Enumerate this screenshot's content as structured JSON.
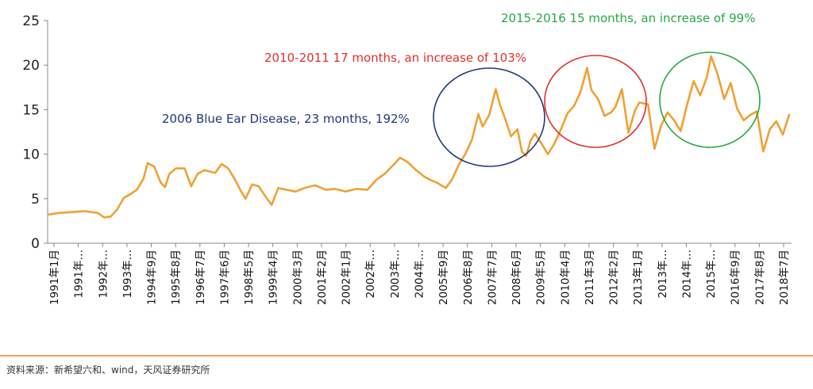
{
  "chart_data": {
    "type": "line",
    "title": "",
    "xlabel": "",
    "ylabel": "",
    "ylim": [
      0,
      25
    ],
    "yticks": [
      "0",
      "5",
      "10",
      "15",
      "20",
      "25"
    ],
    "grid": false,
    "legend": "none",
    "line_color": "#f0a033",
    "x_ticks": [
      "1991年1月",
      "1991年…",
      "1992年…",
      "1993年…",
      "1994年9月",
      "1995年8月",
      "1996年7月",
      "1997年6月",
      "1998年5月",
      "1999年4月",
      "2000年3月",
      "2001年2月",
      "2002年1月",
      "2002年…",
      "2003年…",
      "2004年…",
      "2005年9月",
      "2006年8月",
      "2007年7月",
      "2008年6月",
      "2009年5月",
      "2010年4月",
      "2011年3月",
      "2012年2月",
      "2013年1月",
      "2013年…",
      "2014年…",
      "2015年…",
      "2016年9月",
      "2017年8月",
      "2018年7月"
    ],
    "series": [
      {
        "points": [
          [
            "1991-01",
            3.2
          ],
          [
            "1991-06",
            3.4
          ],
          [
            "1991-12",
            3.5
          ],
          [
            "1992-06",
            3.6
          ],
          [
            "1992-12",
            3.4
          ],
          [
            "1993-03",
            2.9
          ],
          [
            "1993-06",
            3.0
          ],
          [
            "1993-09",
            3.8
          ],
          [
            "1993-12",
            5.1
          ],
          [
            "1994-03",
            5.5
          ],
          [
            "1994-06",
            6.0
          ],
          [
            "1994-09",
            7.2
          ],
          [
            "1994-11",
            9.0
          ],
          [
            "1995-02",
            8.6
          ],
          [
            "1995-05",
            6.8
          ],
          [
            "1995-07",
            6.3
          ],
          [
            "1995-09",
            7.8
          ],
          [
            "1995-12",
            8.4
          ],
          [
            "1996-04",
            8.4
          ],
          [
            "1996-07",
            6.4
          ],
          [
            "1996-10",
            7.8
          ],
          [
            "1997-01",
            8.2
          ],
          [
            "1997-06",
            7.9
          ],
          [
            "1997-09",
            8.9
          ],
          [
            "1997-12",
            8.4
          ],
          [
            "1998-03",
            7.2
          ],
          [
            "1998-06",
            5.8
          ],
          [
            "1998-08",
            5.0
          ],
          [
            "1998-11",
            6.6
          ],
          [
            "1999-02",
            6.4
          ],
          [
            "1999-05",
            5.3
          ],
          [
            "1999-08",
            4.3
          ],
          [
            "1999-11",
            6.2
          ],
          [
            "2000-03",
            6.0
          ],
          [
            "2000-07",
            5.8
          ],
          [
            "2000-11",
            6.2
          ],
          [
            "2001-04",
            6.5
          ],
          [
            "2001-09",
            6.0
          ],
          [
            "2002-01",
            6.1
          ],
          [
            "2002-06",
            5.8
          ],
          [
            "2002-11",
            6.1
          ],
          [
            "2003-04",
            6.0
          ],
          [
            "2003-08",
            7.1
          ],
          [
            "2003-12",
            7.8
          ],
          [
            "2004-04",
            8.8
          ],
          [
            "2004-07",
            9.6
          ],
          [
            "2004-10",
            9.2
          ],
          [
            "2005-02",
            8.3
          ],
          [
            "2005-06",
            7.5
          ],
          [
            "2005-09",
            7.1
          ],
          [
            "2005-12",
            6.8
          ],
          [
            "2006-04",
            6.2
          ],
          [
            "2006-07",
            7.2
          ],
          [
            "2006-10",
            8.8
          ],
          [
            "2007-01",
            10.0
          ],
          [
            "2007-04",
            11.6
          ],
          [
            "2007-07",
            14.5
          ],
          [
            "2007-09",
            13.1
          ],
          [
            "2007-12",
            14.4
          ],
          [
            "2008-03",
            17.3
          ],
          [
            "2008-05",
            15.5
          ],
          [
            "2008-07",
            14.2
          ],
          [
            "2008-10",
            12.0
          ],
          [
            "2009-01",
            12.8
          ],
          [
            "2009-03",
            10.3
          ],
          [
            "2009-05",
            9.8
          ],
          [
            "2009-07",
            11.5
          ],
          [
            "2009-09",
            12.3
          ],
          [
            "2009-12",
            11.2
          ],
          [
            "2010-03",
            10.0
          ],
          [
            "2010-06",
            11.2
          ],
          [
            "2010-09",
            12.8
          ],
          [
            "2010-12",
            14.6
          ],
          [
            "2011-03",
            15.4
          ],
          [
            "2011-06",
            17.0
          ],
          [
            "2011-09",
            19.7
          ],
          [
            "2011-11",
            17.2
          ],
          [
            "2012-02",
            16.2
          ],
          [
            "2012-05",
            14.3
          ],
          [
            "2012-08",
            14.7
          ],
          [
            "2012-10",
            15.3
          ],
          [
            "2013-01",
            17.3
          ],
          [
            "2013-04",
            12.4
          ],
          [
            "2013-07",
            14.9
          ],
          [
            "2013-09",
            15.8
          ],
          [
            "2014-01",
            15.6
          ],
          [
            "2014-04",
            10.6
          ],
          [
            "2014-07",
            13.2
          ],
          [
            "2014-10",
            14.7
          ],
          [
            "2015-01",
            13.8
          ],
          [
            "2015-04",
            12.6
          ],
          [
            "2015-07",
            15.6
          ],
          [
            "2015-10",
            18.2
          ],
          [
            "2016-01",
            16.6
          ],
          [
            "2016-04",
            18.6
          ],
          [
            "2016-06",
            21.0
          ],
          [
            "2016-09",
            19.0
          ],
          [
            "2016-12",
            16.2
          ],
          [
            "2017-03",
            18.0
          ],
          [
            "2017-06",
            15.1
          ],
          [
            "2017-09",
            13.8
          ],
          [
            "2017-12",
            14.4
          ],
          [
            "2018-03",
            14.8
          ],
          [
            "2018-06",
            10.3
          ],
          [
            "2018-09",
            12.8
          ],
          [
            "2018-12",
            13.7
          ],
          [
            "2019-03",
            12.2
          ],
          [
            "2019-06",
            14.5
          ]
        ]
      }
    ],
    "annotations": [
      {
        "text": "2006 Blue Ear Disease, 23 months, 192%",
        "color": "#1f3a7a"
      },
      {
        "text": "2010-2011 17 months, an increase of 103%",
        "color": "#e0302a"
      },
      {
        "text": "2015-2016 15 months, an increase of 99%",
        "color": "#27a844"
      }
    ],
    "source_note": "资料来源：新希望六和、wind，天风证券研究所",
    "footer_rule_color": "#f0a060"
  }
}
